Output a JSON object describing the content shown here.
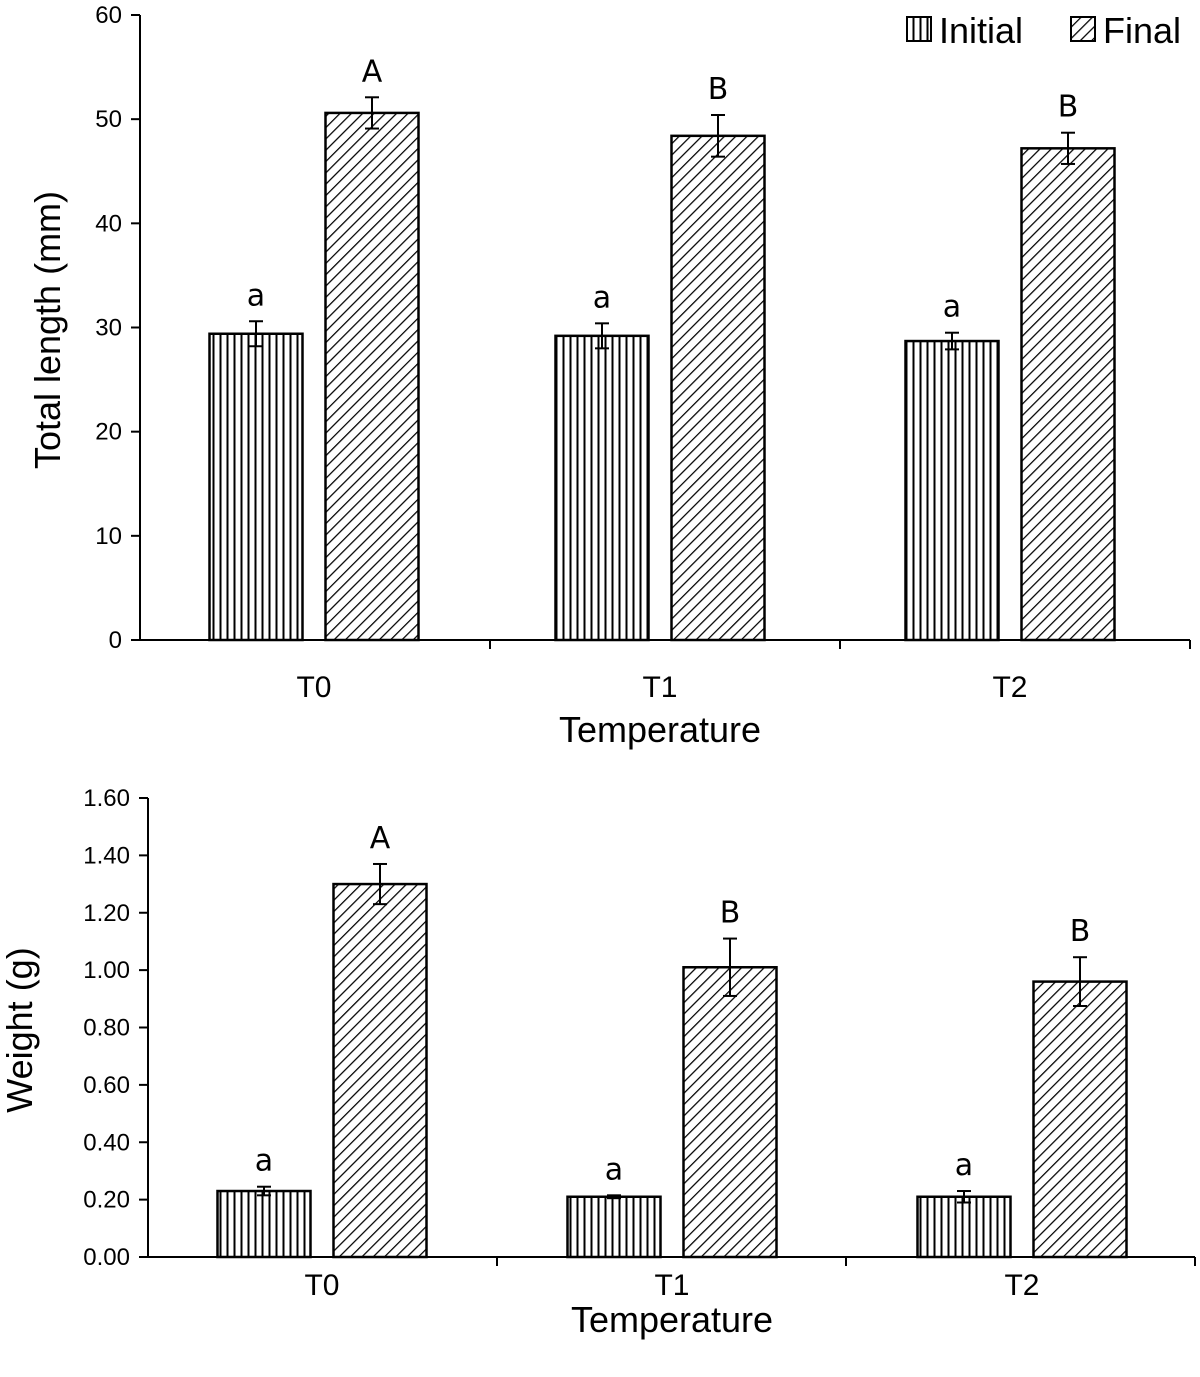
{
  "chart_data": [
    {
      "type": "bar",
      "ylabel": "Total length (mm)",
      "xlabel": "Temperature",
      "categories": [
        "T0",
        "T1",
        "T2"
      ],
      "ylim": [
        0,
        60
      ],
      "yticks": [
        "0",
        "10",
        "20",
        "30",
        "40",
        "50",
        "60"
      ],
      "ytick_values": [
        0,
        10,
        20,
        30,
        40,
        50,
        60
      ],
      "legend": {
        "position": "top-right",
        "entries": [
          "Initial",
          "Final"
        ]
      },
      "series": [
        {
          "name": "Initial",
          "values": [
            29.4,
            29.2,
            28.7
          ],
          "errors": [
            1.2,
            1.2,
            0.8
          ],
          "labels": [
            "a",
            "a",
            "a"
          ],
          "pattern": "vertical"
        },
        {
          "name": "Final",
          "values": [
            50.6,
            48.4,
            47.2
          ],
          "errors": [
            1.5,
            2.0,
            1.5
          ],
          "labels": [
            "A",
            "B",
            "B"
          ],
          "pattern": "diagonal"
        }
      ]
    },
    {
      "type": "bar",
      "ylabel": "Weight (g)",
      "xlabel": "Temperature",
      "categories": [
        "T0",
        "T1",
        "T2"
      ],
      "ylim": [
        0,
        1.6
      ],
      "yticks": [
        "0.00",
        "0.20",
        "0.40",
        "0.60",
        "0.80",
        "1.00",
        "1.20",
        "1.40",
        "1.60"
      ],
      "ytick_values": [
        0,
        0.2,
        0.4,
        0.6,
        0.8,
        1.0,
        1.2,
        1.4,
        1.6
      ],
      "series": [
        {
          "name": "Initial",
          "values": [
            0.23,
            0.21,
            0.21
          ],
          "errors": [
            0.015,
            0.005,
            0.02
          ],
          "labels": [
            "a",
            "a",
            "a"
          ],
          "pattern": "vertical"
        },
        {
          "name": "Final",
          "values": [
            1.3,
            1.01,
            0.96
          ],
          "errors": [
            0.07,
            0.1,
            0.085
          ],
          "labels": [
            "A",
            "B",
            "B"
          ],
          "pattern": "diagonal"
        }
      ]
    }
  ]
}
